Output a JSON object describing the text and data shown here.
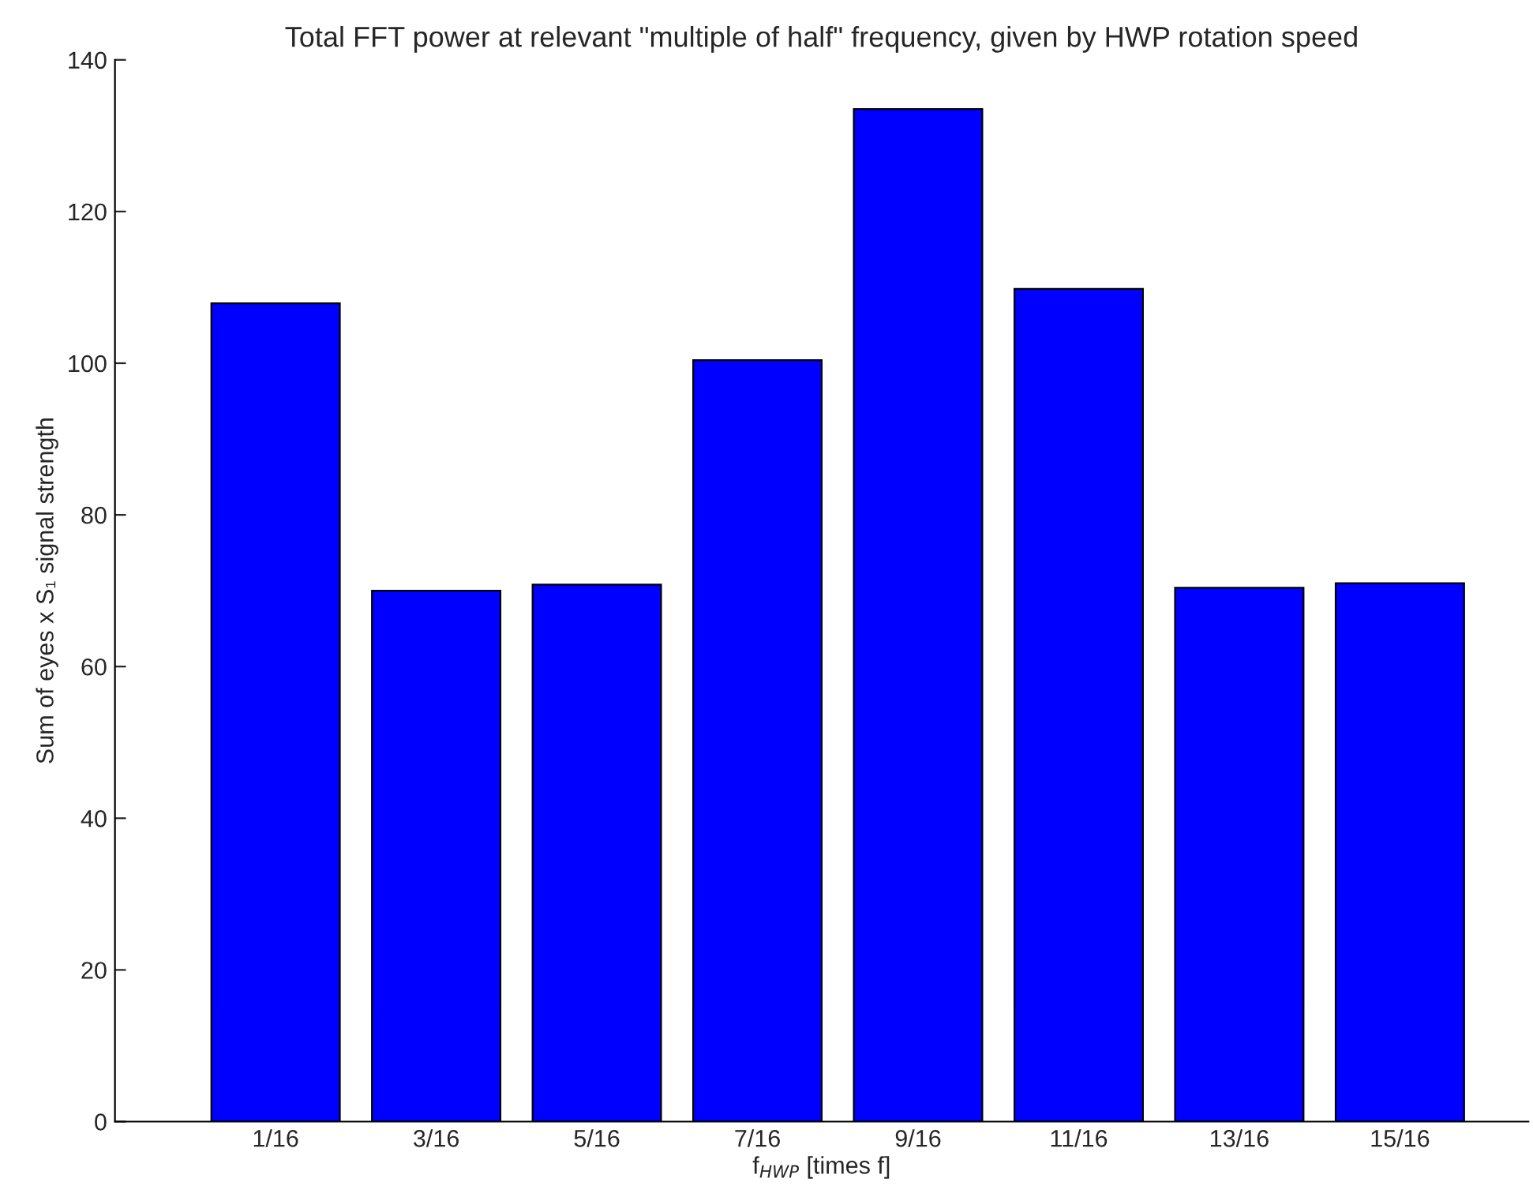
{
  "chart_data": {
    "type": "bar",
    "title": "Total FFT power at relevant \"multiple of half\" frequency, given by HWP rotation speed",
    "xlabel": "f$_{HWP}$ [times f]",
    "ylabel": "Sum of eyes x S₁ signal strength",
    "categories": [
      "1/16",
      "3/16",
      "5/16",
      "7/16",
      "9/16",
      "11/16",
      "13/16",
      "15/16"
    ],
    "values": [
      107.9,
      70,
      70.8,
      100.4,
      133.5,
      109.8,
      70.4,
      71.0
    ],
    "color": "#0000ff",
    "ylim": [
      0,
      140
    ],
    "yticks": [
      0,
      20,
      40,
      60,
      80,
      100,
      120,
      140
    ],
    "grid": false
  }
}
